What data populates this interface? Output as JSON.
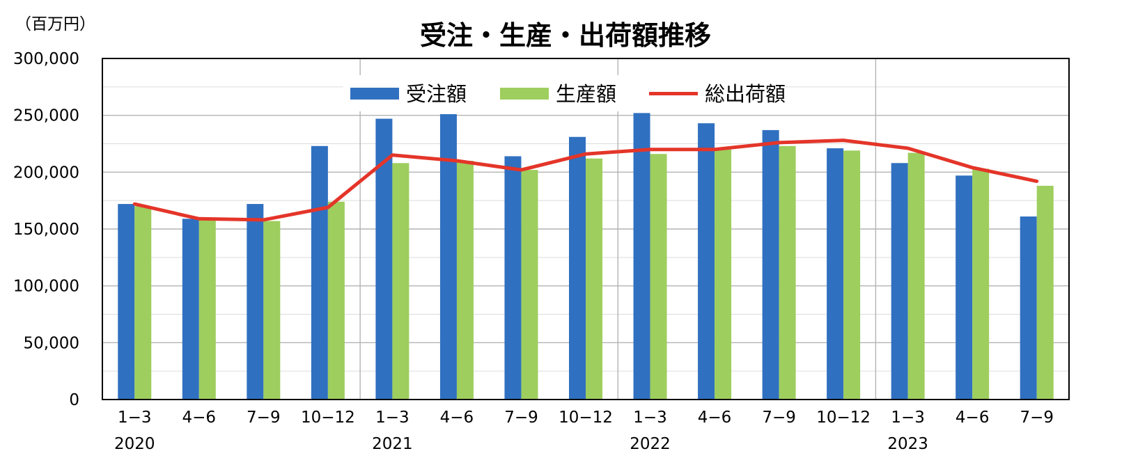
{
  "chart_data": {
    "type": "bar",
    "title": "受注・生産・出荷額推移",
    "unit_label": "（百万円）",
    "ylim": [
      0,
      300000
    ],
    "y_ticks": [
      "0",
      "50,000",
      "100,000",
      "150,000",
      "200,000",
      "250,000",
      "300,000"
    ],
    "y_tick_values": [
      0,
      50000,
      100000,
      150000,
      200000,
      250000,
      300000
    ],
    "grid": true,
    "legend_position": "top-center",
    "categories": [
      "1−3",
      "4−6",
      "7−9",
      "10−12",
      "1−3",
      "4−6",
      "7−9",
      "10−12",
      "1−3",
      "4−6",
      "7−9",
      "10−12",
      "1−3",
      "4−6",
      "7−9"
    ],
    "years": [
      {
        "label": "2020",
        "start": 0,
        "count": 4
      },
      {
        "label": "2021",
        "start": 4,
        "count": 4
      },
      {
        "label": "2022",
        "start": 8,
        "count": 4
      },
      {
        "label": "2023",
        "start": 12,
        "count": 3
      }
    ],
    "series": [
      {
        "name": "受注額",
        "kind": "bar",
        "color": "#3070C0",
        "values": [
          172000,
          159000,
          172000,
          223000,
          247000,
          251000,
          214000,
          231000,
          252000,
          243000,
          237000,
          221000,
          208000,
          197000,
          161000
        ]
      },
      {
        "name": "生産額",
        "kind": "bar",
        "color": "#9ECE5E",
        "values": [
          170000,
          159000,
          157000,
          174000,
          208000,
          210000,
          202000,
          212000,
          216000,
          220000,
          223000,
          219000,
          217000,
          203000,
          188000
        ]
      },
      {
        "name": "総出荷額",
        "kind": "line",
        "color": "#E43529",
        "values": [
          172000,
          159000,
          158000,
          169000,
          215000,
          210000,
          202000,
          216000,
          220000,
          220000,
          226000,
          228000,
          221000,
          204000,
          192000
        ]
      }
    ]
  }
}
